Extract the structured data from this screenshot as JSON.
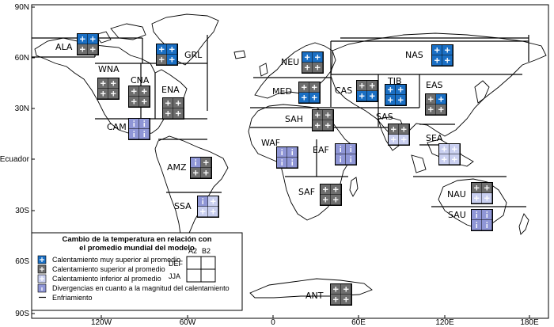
{
  "map": {
    "y_labels": [
      "90N",
      "60N",
      "30N",
      "Ecuador",
      "30S",
      "60S",
      "90S"
    ],
    "x_labels": [
      "120W",
      "60W",
      "0",
      "60E",
      "120E",
      "180E"
    ],
    "regions": [
      {
        "code": "ALA",
        "cells": [
          "vl",
          "vl",
          "sp",
          "sp"
        ]
      },
      {
        "code": "GRL",
        "cells": [
          "vl",
          "vl",
          "sp",
          "vl"
        ]
      },
      {
        "code": "WNA",
        "cells": [
          "sp",
          "sp",
          "sp",
          "sp"
        ]
      },
      {
        "code": "CNA",
        "cells": [
          "sp",
          "sp",
          "sp",
          "sp"
        ]
      },
      {
        "code": "ENA",
        "cells": [
          "sp",
          "sp",
          "sp",
          "sp"
        ]
      },
      {
        "code": "CAM",
        "cells": [
          "dv",
          "dv",
          "dv",
          "dv"
        ]
      },
      {
        "code": "AMZ",
        "cells": [
          "dv",
          "sp",
          "sp",
          "sp"
        ]
      },
      {
        "code": "SSA",
        "cells": [
          "dv",
          "ip",
          "ip",
          "ip"
        ]
      },
      {
        "code": "NEU",
        "cells": [
          "vl",
          "vl",
          "sp",
          "sp"
        ]
      },
      {
        "code": "MED",
        "cells": [
          "sp",
          "sp",
          "vl",
          "vl"
        ]
      },
      {
        "code": "SAH",
        "cells": [
          "sp",
          "sp",
          "sp",
          "sp"
        ]
      },
      {
        "code": "WAF",
        "cells": [
          "dv",
          "dv",
          "dv",
          "dv"
        ]
      },
      {
        "code": "EAF",
        "cells": [
          "dv",
          "dv",
          "dv",
          "dv"
        ]
      },
      {
        "code": "SAF",
        "cells": [
          "sp",
          "sp",
          "sp",
          "sp"
        ]
      },
      {
        "code": "NAS",
        "cells": [
          "vl",
          "vl",
          "vl",
          "vl"
        ]
      },
      {
        "code": "CAS",
        "cells": [
          "sp",
          "sp",
          "vl",
          "vl"
        ]
      },
      {
        "code": "TIB",
        "cells": [
          "vl",
          "vl",
          "vl",
          "vl"
        ]
      },
      {
        "code": "EAS",
        "cells": [
          "sp",
          "vl",
          "sp",
          "sp"
        ]
      },
      {
        "code": "SAS",
        "cells": [
          "sp",
          "sp",
          "ip",
          "ip"
        ]
      },
      {
        "code": "SEA",
        "cells": [
          "ip",
          "ip",
          "ip",
          "ip"
        ]
      },
      {
        "code": "NAU",
        "cells": [
          "sp",
          "sp",
          "ip",
          "ip"
        ]
      },
      {
        "code": "SAU",
        "cells": [
          "dv",
          "dv",
          "dv",
          "dv"
        ]
      },
      {
        "code": "ANT",
        "cells": [
          "sp",
          "sp",
          "sp",
          "sp"
        ]
      }
    ],
    "colors": {
      "vl": "#1a6fc4",
      "sp": "#6e6e6e",
      "ip": "#c9cff0",
      "dv": "#8f96d6",
      "land": "#ffffff",
      "coast": "#000000"
    }
  },
  "legend": {
    "title_line1": "Cambio de la temperatura en relación con",
    "title_line2": "el promedio mundial del modelo",
    "col_a": "A2",
    "col_b": "B2",
    "row_a": "DEF",
    "row_b": "JJA",
    "items": [
      {
        "key": "vl",
        "label": "Calentamiento muy superior al promedio",
        "symbol": "+"
      },
      {
        "key": "sp",
        "label": "Calentamiento superior al promedio",
        "symbol": "+"
      },
      {
        "key": "ip",
        "label": "Calentamiento inferior al promedio",
        "symbol": "+"
      },
      {
        "key": "dv",
        "label": "Divergencias en cuanto a la magnitud del calentamiento",
        "symbol": "i"
      },
      {
        "key": "cool",
        "label": "Enfriamiento",
        "symbol": "—"
      }
    ]
  }
}
